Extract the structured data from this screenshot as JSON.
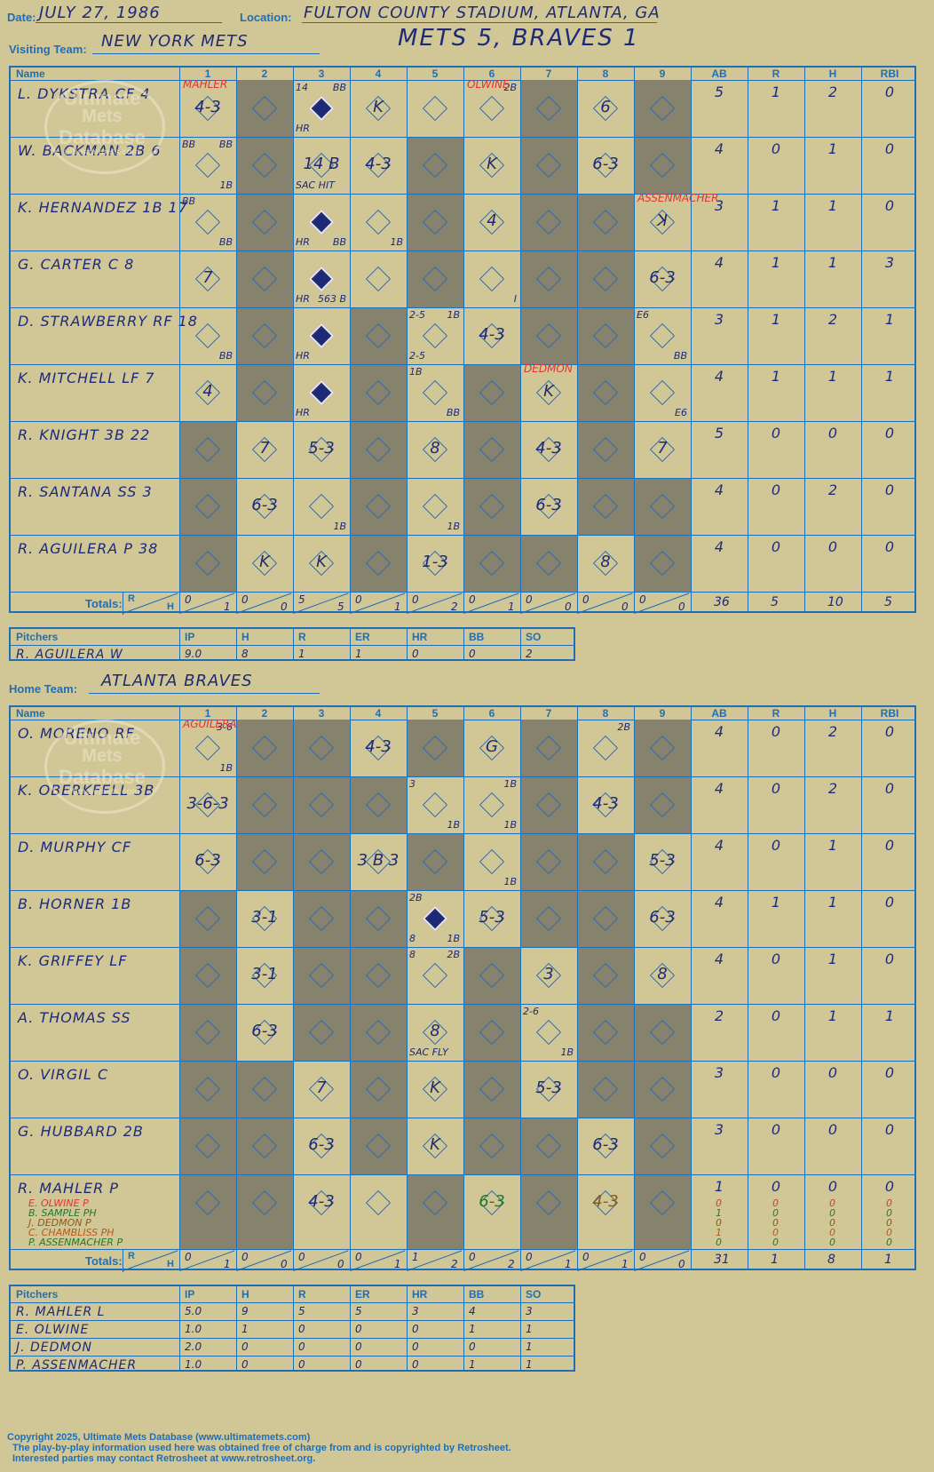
{
  "header": {
    "date_label": "Date:",
    "date": "JULY 27, 1986",
    "location_label": "Location:",
    "location": "FULTON COUNTY STADIUM, ATLANTA, GA",
    "visiting_label": "Visiting Team:",
    "visiting_team": "NEW YORK METS",
    "result": "METS 5, BRAVES 1",
    "home_label": "Home Team:",
    "home_team": "ATLANTA BRAVES"
  },
  "columns": {
    "name": "Name",
    "innings": [
      "1",
      "2",
      "3",
      "4",
      "5",
      "6",
      "7",
      "8",
      "9"
    ],
    "stats": [
      "AB",
      "R",
      "H",
      "RBI"
    ]
  },
  "totals_label": "Totals:",
  "rh": {
    "r": "R",
    "h": "H"
  },
  "pitcher_headers": [
    "Pitchers",
    "IP",
    "H",
    "R",
    "ER",
    "HR",
    "BB",
    "SO"
  ],
  "watermark": {
    "line1": "Ultimate",
    "line2": "Mets",
    "line3": "Database",
    "url": "ultimatemets.com"
  },
  "visitors": {
    "batters": [
      {
        "name": "L. DYKSTRA CF  4",
        "stats": [
          "5",
          "1",
          "2",
          "0"
        ],
        "cells": {
          "1": {
            "play": "4-3"
          },
          "3": {
            "run": true,
            "tl": "14",
            "tr": "BB",
            "bl": "HR"
          },
          "4": {
            "play": "K"
          },
          "6": {
            "tr": "2B"
          },
          "8": {
            "play": "6"
          }
        }
      },
      {
        "name": "W. BACKMAN 2B  6",
        "stats": [
          "4",
          "0",
          "1",
          "0"
        ],
        "cells": {
          "1": {
            "tl": "BB",
            "tr": "BB",
            "br": "1B"
          },
          "3": {
            "play": "14 B",
            "bl": "SAC HIT"
          },
          "4": {
            "play": "4-3"
          },
          "6": {
            "play": "K"
          },
          "8": {
            "play": "6-3"
          }
        }
      },
      {
        "name": "K. HERNANDEZ 1B  17",
        "stats": [
          "3",
          "1",
          "1",
          "0"
        ],
        "cells": {
          "1": {
            "tl": "BB",
            "br": "BB"
          },
          "3": {
            "run": true,
            "bl": "HR",
            "br": "BB"
          },
          "4": {
            "br": "1B"
          },
          "6": {
            "play": "4"
          },
          "9": {
            "play": "ꓘ"
          }
        }
      },
      {
        "name": "G. CARTER C  8",
        "stats": [
          "4",
          "1",
          "1",
          "3"
        ],
        "cells": {
          "1": {
            "play": "7"
          },
          "3": {
            "run": true,
            "bl": "HR",
            "br": "563 B"
          },
          "6": {
            "br": "I"
          },
          "9": {
            "play": "6-3"
          }
        }
      },
      {
        "name": "D. STRAWBERRY RF  18",
        "stats": [
          "3",
          "1",
          "2",
          "1"
        ],
        "cells": {
          "1": {
            "br": "BB"
          },
          "3": {
            "run": true,
            "bl": "HR"
          },
          "5": {
            "tl": "2-5",
            "tr": "1B",
            "bl": "2-5"
          },
          "6": {
            "play": "4-3"
          },
          "9": {
            "tl": "E6",
            "br": "BB"
          }
        }
      },
      {
        "name": "K. MITCHELL LF  7",
        "stats": [
          "4",
          "1",
          "1",
          "1"
        ],
        "cells": {
          "1": {
            "play": "4"
          },
          "3": {
            "run": true,
            "bl": "HR"
          },
          "5": {
            "tl": "1B",
            "br": "BB"
          },
          "7": {
            "play": "K"
          },
          "9": {
            "br": "E6"
          }
        }
      },
      {
        "name": "R. KNIGHT 3B  22",
        "stats": [
          "5",
          "0",
          "0",
          "0"
        ],
        "cells": {
          "2": {
            "play": "7"
          },
          "3": {
            "play": "5-3"
          },
          "5": {
            "play": "8"
          },
          "7": {
            "play": "4-3"
          },
          "9": {
            "play": "7"
          }
        }
      },
      {
        "name": "R. SANTANA SS  3",
        "stats": [
          "4",
          "0",
          "2",
          "0"
        ],
        "cells": {
          "2": {
            "play": "6-3"
          },
          "3": {
            "br": "1B"
          },
          "5": {
            "br": "1B"
          },
          "7": {
            "play": "6-3"
          }
        }
      },
      {
        "name": "R. AGUILERA P  38",
        "stats": [
          "4",
          "0",
          "0",
          "0"
        ],
        "cells": {
          "2": {
            "play": "K"
          },
          "3": {
            "play": "K"
          },
          "5": {
            "play": "1-3"
          },
          "8": {
            "play": "8"
          }
        }
      }
    ],
    "totals": {
      "rh": [
        [
          "0",
          "1"
        ],
        [
          "0",
          "0"
        ],
        [
          "5",
          "5"
        ],
        [
          "0",
          "1"
        ],
        [
          "0",
          "2"
        ],
        [
          "0",
          "1"
        ],
        [
          "0",
          "0"
        ],
        [
          "0",
          "0"
        ],
        [
          "0",
          "0"
        ]
      ],
      "stats": [
        "36",
        "5",
        "10",
        "5"
      ]
    },
    "pitchers": [
      {
        "name": "R. AGUILERA  W",
        "vals": [
          "9.0",
          "8",
          "1",
          "1",
          "0",
          "0",
          "2"
        ]
      }
    ],
    "subs": [
      {
        "text": "MAHLER",
        "row": 0,
        "inning": 1
      },
      {
        "text": "OLWINE",
        "row": 0,
        "inning": 6
      },
      {
        "text": "ASSENMACHER",
        "row": 2,
        "inning": 9
      },
      {
        "text": "DEDMON",
        "row": 5,
        "inning": 7
      }
    ]
  },
  "home": {
    "batters": [
      {
        "name": "O. MORENO RF",
        "stats": [
          "4",
          "0",
          "2",
          "0"
        ],
        "cells": {
          "1": {
            "tr": "3-6",
            "br": "1B"
          },
          "4": {
            "play": "4-3"
          },
          "6": {
            "play": "G"
          },
          "8": {
            "tr": "2B"
          }
        }
      },
      {
        "name": "K. OBERKFELL 3B",
        "stats": [
          "4",
          "0",
          "2",
          "0"
        ],
        "cells": {
          "1": {
            "play": "3-6-3"
          },
          "5": {
            "tl": "3",
            "br": "1B"
          },
          "6": {
            "tr": "1B",
            "br": "1B"
          },
          "8": {
            "play": "4-3"
          }
        }
      },
      {
        "name": "D. MURPHY CF",
        "stats": [
          "4",
          "0",
          "1",
          "0"
        ],
        "cells": {
          "1": {
            "play": "6-3"
          },
          "4": {
            "play": "3 B 3"
          },
          "6": {
            "br": "1B"
          },
          "9": {
            "play": "5-3"
          }
        }
      },
      {
        "name": "B. HORNER 1B",
        "stats": [
          "4",
          "1",
          "1",
          "0"
        ],
        "cells": {
          "2": {
            "play": "3-1"
          },
          "5": {
            "run": true,
            "tl": "2B",
            "bl": "8",
            "br": "1B"
          },
          "6": {
            "play": "5-3"
          },
          "9": {
            "play": "6-3"
          }
        }
      },
      {
        "name": "K. GRIFFEY LF",
        "stats": [
          "4",
          "0",
          "1",
          "0"
        ],
        "cells": {
          "2": {
            "play": "3-1"
          },
          "5": {
            "tl": "8",
            "tr": "2B"
          },
          "7": {
            "play": "3"
          },
          "9": {
            "play": "8"
          }
        }
      },
      {
        "name": "A. THOMAS SS",
        "stats": [
          "2",
          "0",
          "1",
          "1"
        ],
        "cells": {
          "2": {
            "play": "6-3"
          },
          "5": {
            "play": "8",
            "bl": "SAC FLY"
          },
          "7": {
            "tl": "2-6",
            "br": "1B"
          }
        }
      },
      {
        "name": "O. VIRGIL C",
        "stats": [
          "3",
          "0",
          "0",
          "0"
        ],
        "cells": {
          "3": {
            "play": "7"
          },
          "5": {
            "play": "K"
          },
          "7": {
            "play": "5-3"
          }
        }
      },
      {
        "name": "G. HUBBARD 2B",
        "stats": [
          "3",
          "0",
          "0",
          "0"
        ],
        "cells": {
          "3": {
            "play": "6-3"
          },
          "5": {
            "play": "K"
          },
          "8": {
            "play": "6-3"
          }
        }
      },
      {
        "name": "R. MAHLER P",
        "stats": [
          "1",
          "0",
          "0",
          "0"
        ],
        "cells": {
          "3": {
            "play": "4-3"
          },
          "6": {
            "play": "6-3",
            "color": "#1e7a2a"
          },
          "8": {
            "play": "4-3",
            "color": "#8a5a1a"
          }
        },
        "subs": [
          {
            "text": "E. OLWINE P",
            "color": "#e0342c",
            "stats": [
              "0",
              "0",
              "0",
              "0"
            ]
          },
          {
            "text": "B. SAMPLE PH",
            "color": "#1e7a2a",
            "stats": [
              "1",
              "0",
              "0",
              "0"
            ]
          },
          {
            "text": "J. DEDMON P",
            "color": "#8a5a1a",
            "stats": [
              "0",
              "0",
              "0",
              "0"
            ]
          },
          {
            "text": "C. CHAMBLISS PH",
            "color": "#b85a1a",
            "stats": [
              "1",
              "0",
              "0",
              "0"
            ]
          },
          {
            "text": "P. ASSENMACHER P",
            "color": "#1e7a2a",
            "stats": [
              "0",
              "0",
              "0",
              "0"
            ]
          }
        ]
      }
    ],
    "totals": {
      "rh": [
        [
          "0",
          "1"
        ],
        [
          "0",
          "0"
        ],
        [
          "0",
          "0"
        ],
        [
          "0",
          "1"
        ],
        [
          "1",
          "2"
        ],
        [
          "0",
          "2"
        ],
        [
          "0",
          "1"
        ],
        [
          "0",
          "1"
        ],
        [
          "0",
          "0"
        ]
      ],
      "stats": [
        "31",
        "1",
        "8",
        "1"
      ]
    },
    "pitchers": [
      {
        "name": "R. MAHLER  L",
        "vals": [
          "5.0",
          "9",
          "5",
          "5",
          "3",
          "4",
          "3"
        ]
      },
      {
        "name": "E. OLWINE",
        "vals": [
          "1.0",
          "1",
          "0",
          "0",
          "0",
          "1",
          "1"
        ]
      },
      {
        "name": "J. DEDMON",
        "vals": [
          "2.0",
          "0",
          "0",
          "0",
          "0",
          "0",
          "1"
        ]
      },
      {
        "name": "P. ASSENMACHER",
        "vals": [
          "1.0",
          "0",
          "0",
          "0",
          "0",
          "1",
          "1"
        ]
      }
    ],
    "subs": [
      {
        "text": "AGUILERA",
        "row": 0,
        "inning": 1
      }
    ]
  },
  "footer": {
    "line1": "Copyright 2025, Ultimate Mets Database (www.ultimatemets.com)",
    "line2": "The play-by-play information used here was obtained free of charge from and is copyrighted by Retrosheet.",
    "line3": "Interested parties may contact Retrosheet at www.retrosheet.org."
  }
}
